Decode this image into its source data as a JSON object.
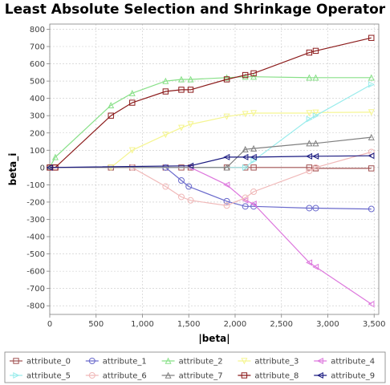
{
  "chart_data": {
    "type": "line",
    "title": "Least Absolute Selection and Shrinkage Operator",
    "xlabel": "|beta|",
    "ylabel": "beta_i",
    "xlim": [
      0,
      3550
    ],
    "ylim": [
      -850,
      830
    ],
    "xticks": [
      0,
      500,
      1000,
      1500,
      2000,
      2500,
      3000,
      3500
    ],
    "xtick_labels": [
      "0",
      "500",
      "1,000",
      "1,500",
      "2,000",
      "2,500",
      "3,000",
      "3,500"
    ],
    "yticks": [
      800,
      700,
      600,
      500,
      400,
      300,
      200,
      100,
      0,
      -100,
      -200,
      -300,
      -400,
      -500,
      -600,
      -700,
      -800
    ],
    "ytick_labels": [
      "800",
      "700",
      "600",
      "500",
      "400",
      "300",
      "200",
      "100",
      "0",
      "-100",
      "-200",
      "-300",
      "-400",
      "-500",
      "-600",
      "-700",
      "-800"
    ],
    "grid": true,
    "legend_position": "bottom",
    "series": [
      {
        "name": "attribute_0",
        "color": "#a05050",
        "marker": "square",
        "x": [
          0,
          60,
          660,
          890,
          1250,
          1420,
          1520,
          1910,
          2110,
          2200,
          2800,
          2870,
          3470
        ],
        "y": [
          0,
          0,
          0,
          0,
          0,
          0,
          0,
          0,
          0,
          0,
          0,
          -5,
          -5
        ]
      },
      {
        "name": "attribute_1",
        "color": "#6a6acc",
        "marker": "circle",
        "x": [
          0,
          1250,
          1420,
          1500,
          1910,
          2110,
          2200,
          2800,
          2870,
          3470
        ],
        "y": [
          0,
          0,
          -75,
          -110,
          -195,
          -225,
          -225,
          -235,
          -235,
          -240
        ]
      },
      {
        "name": "attribute_2",
        "color": "#88e088",
        "marker": "triangle-up",
        "x": [
          0,
          60,
          660,
          890,
          1250,
          1420,
          1520,
          1910,
          2110,
          2200,
          2800,
          2870,
          3470
        ],
        "y": [
          0,
          60,
          360,
          430,
          500,
          510,
          510,
          520,
          525,
          525,
          520,
          520,
          520
        ]
      },
      {
        "name": "attribute_3",
        "color": "#f5f590",
        "marker": "triangle-down",
        "x": [
          0,
          660,
          890,
          1250,
          1420,
          1520,
          1910,
          2110,
          2200,
          2800,
          2870,
          3470
        ],
        "y": [
          0,
          0,
          100,
          190,
          230,
          250,
          295,
          310,
          315,
          315,
          318,
          320
        ]
      },
      {
        "name": "attribute_4",
        "color": "#dd77dd",
        "marker": "triangle-left",
        "x": [
          0,
          1520,
          1910,
          2110,
          2200,
          2800,
          2870,
          3470
        ],
        "y": [
          0,
          0,
          -100,
          -190,
          -210,
          -550,
          -575,
          -790
        ]
      },
      {
        "name": "attribute_5",
        "color": "#99ecec",
        "marker": "triangle-right",
        "x": [
          0,
          2110,
          2200,
          2800,
          2870,
          3470
        ],
        "y": [
          0,
          0,
          40,
          280,
          300,
          480
        ]
      },
      {
        "name": "attribute_6",
        "color": "#f0b8b8",
        "marker": "circle",
        "x": [
          0,
          890,
          1250,
          1420,
          1520,
          1910,
          2110,
          2200,
          2800,
          2870,
          3470
        ],
        "y": [
          0,
          0,
          -110,
          -170,
          -190,
          -220,
          -175,
          -140,
          -20,
          0,
          90
        ]
      },
      {
        "name": "attribute_7",
        "color": "#808080",
        "marker": "triangle-up",
        "x": [
          0,
          1910,
          2110,
          2200,
          2800,
          2870,
          3470
        ],
        "y": [
          0,
          0,
          105,
          110,
          140,
          140,
          175
        ]
      },
      {
        "name": "attribute_8",
        "color": "#8b1a1a",
        "marker": "square",
        "x": [
          0,
          60,
          660,
          890,
          1250,
          1420,
          1520,
          1910,
          2110,
          2200,
          2800,
          2870,
          3470
        ],
        "y": [
          0,
          0,
          300,
          375,
          440,
          450,
          450,
          510,
          535,
          545,
          665,
          675,
          750
        ]
      },
      {
        "name": "attribute_9",
        "color": "#1a1a80",
        "marker": "triangle-left",
        "x": [
          0,
          1520,
          1910,
          2110,
          2200,
          2800,
          2870,
          3470
        ],
        "y": [
          0,
          10,
          60,
          60,
          60,
          65,
          65,
          68
        ]
      }
    ]
  }
}
